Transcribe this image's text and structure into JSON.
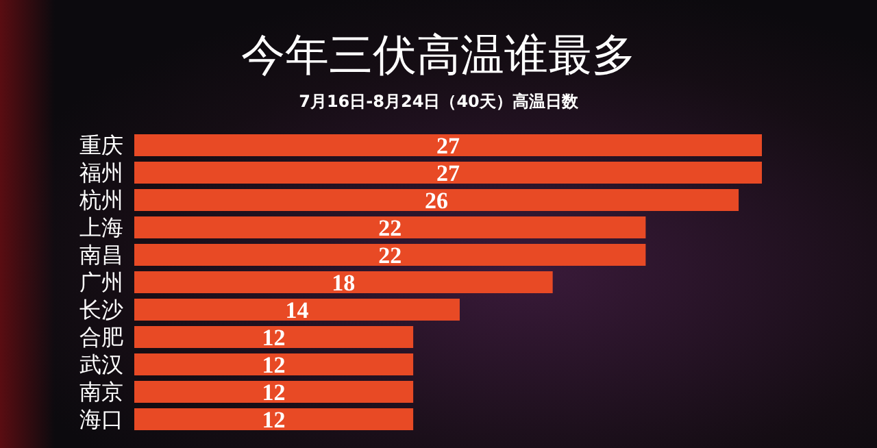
{
  "chart_data": {
    "type": "bar",
    "orientation": "horizontal",
    "title": "今年三伏高温谁最多",
    "subtitle": "7月16日-8月24日（40天）高温日数",
    "categories": [
      "重庆",
      "福州",
      "杭州",
      "上海",
      "南昌",
      "广州",
      "长沙",
      "合肥",
      "武汉",
      "南京",
      "海口"
    ],
    "values": [
      27,
      27,
      26,
      22,
      22,
      18,
      14,
      12,
      12,
      12,
      12
    ],
    "color": "#e84a25",
    "data_labels": true,
    "grid": false,
    "legend": false
  }
}
